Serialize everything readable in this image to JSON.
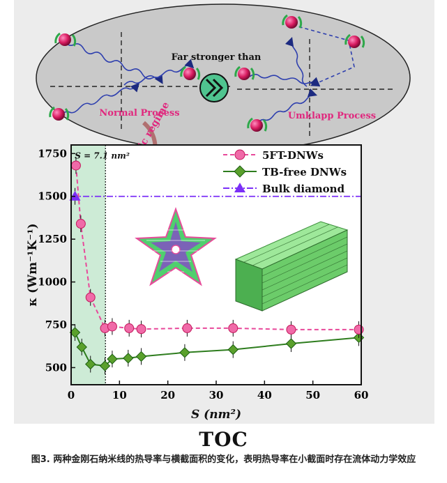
{
  "schematic": {
    "far_stronger_label": "Far stronger than",
    "normal_label": "Normal Process",
    "umklapp_label": "Umklapp Process",
    "hydro_label": "Hydrodynamic regime"
  },
  "colors": {
    "phonon": "#d81b60",
    "halo": "#2ea84a",
    "pink_series": "#e8489a",
    "green_series": "#2e7d1e",
    "purple_series": "#7b2ff7",
    "shade": "#cdebd6",
    "wave": "#2e3fae"
  },
  "chart_data": {
    "type": "scatter",
    "xlabel": "S (nm²)",
    "ylabel": "κ (Wm⁻¹K⁻¹)",
    "xlim": [
      0,
      60
    ],
    "ylim": [
      400,
      1800
    ],
    "x_ticks": [
      "0",
      "10",
      "20",
      "30",
      "40",
      "50",
      "60"
    ],
    "y_ticks": [
      "500",
      "750",
      "1000",
      "1250",
      "1500",
      "1750"
    ],
    "annotation": "S = 7.1 nm²",
    "threshold_x": 7.1,
    "series": [
      {
        "name": "5FT-DNWs",
        "style": "dashed-circle",
        "x": [
          1.0,
          2.0,
          4.0,
          7.0,
          8.5,
          12.0,
          14.5,
          24.0,
          33.5,
          45.5,
          59.5
        ],
        "y": [
          1680,
          1340,
          910,
          730,
          740,
          730,
          725,
          730,
          730,
          722,
          722
        ]
      },
      {
        "name": "TB-free DNWs",
        "style": "solid-diamond",
        "x": [
          0.8,
          2.2,
          4.0,
          7.0,
          8.5,
          11.8,
          14.5,
          23.5,
          33.5,
          45.5,
          59.5
        ],
        "y": [
          705,
          620,
          520,
          510,
          550,
          555,
          565,
          588,
          605,
          640,
          675
        ]
      },
      {
        "name": "Bulk diamond",
        "style": "dashdot-triangle",
        "x": [
          0.8
        ],
        "y": [
          1500
        ],
        "line_y": 1500
      }
    ]
  },
  "toc_label": "TOC",
  "caption": "图3. 两种金刚石纳米线的热导率与横截面积的变化，表明热导率在小截面时存在流体动力学效应"
}
